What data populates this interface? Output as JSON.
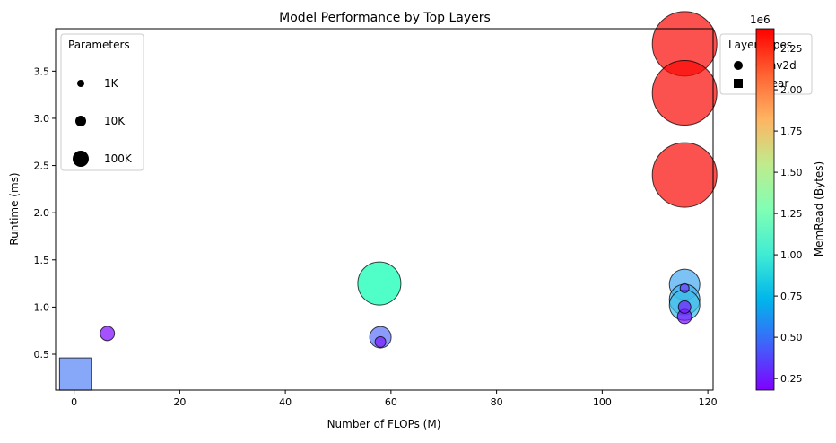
{
  "chart_data": {
    "type": "scatter",
    "title": "Model Performance by Top Layers",
    "xlabel": "Number of FLOPs (M)",
    "ylabel": "Runtime (ms)",
    "xlim": [
      -3.5,
      121
    ],
    "ylim": [
      0.12,
      3.95
    ],
    "xticks": [
      0,
      20,
      40,
      60,
      80,
      100,
      120
    ],
    "yticks": [
      0.5,
      1.0,
      1.5,
      2.0,
      2.5,
      3.0,
      3.5
    ],
    "ytick_labels": [
      "0.5",
      "1.0",
      "1.5",
      "2.0",
      "2.5",
      "3.0",
      "3.5"
    ],
    "points": [
      {
        "x": 0.3,
        "y": 0.29,
        "size": 18,
        "mem": 550000,
        "shape": "square"
      },
      {
        "x": 6.3,
        "y": 0.72,
        "size": 8,
        "mem": 200000,
        "shape": "circle"
      },
      {
        "x": 57.8,
        "y": 1.25,
        "size": 24,
        "mem": 1300000,
        "shape": "circle"
      },
      {
        "x": 58.0,
        "y": 0.68,
        "size": 12,
        "mem": 500000,
        "shape": "circle"
      },
      {
        "x": 58.0,
        "y": 0.63,
        "size": 6,
        "mem": 250000,
        "shape": "circle"
      },
      {
        "x": 115.6,
        "y": 3.79,
        "size": 36,
        "mem": 2350000,
        "shape": "circle"
      },
      {
        "x": 115.6,
        "y": 3.27,
        "size": 36,
        "mem": 2350000,
        "shape": "circle"
      },
      {
        "x": 115.6,
        "y": 2.4,
        "size": 36,
        "mem": 2350000,
        "shape": "circle"
      },
      {
        "x": 115.6,
        "y": 1.24,
        "size": 17,
        "mem": 680000,
        "shape": "circle"
      },
      {
        "x": 115.6,
        "y": 1.08,
        "size": 17,
        "mem": 720000,
        "shape": "circle"
      },
      {
        "x": 115.6,
        "y": 1.02,
        "size": 17,
        "mem": 760000,
        "shape": "circle"
      },
      {
        "x": 115.6,
        "y": 1.2,
        "size": 5,
        "mem": 350000,
        "shape": "circle"
      },
      {
        "x": 115.6,
        "y": 1.0,
        "size": 7,
        "mem": 250000,
        "shape": "circle"
      },
      {
        "x": 115.6,
        "y": 0.9,
        "size": 8,
        "mem": 220000,
        "shape": "circle"
      }
    ],
    "colorbar": {
      "label": "MemRead (Bytes)",
      "multiplier": "1e6",
      "ticks": [
        0.25,
        0.5,
        0.75,
        1.0,
        1.25,
        1.5,
        1.75,
        2.0,
        2.25
      ],
      "tick_labels": [
        "0.25",
        "0.50",
        "0.75",
        "1.00",
        "1.25",
        "1.50",
        "1.75",
        "2.00",
        "2.25"
      ],
      "range": [
        0.18,
        2.37
      ],
      "colormap": "rainbow"
    },
    "size_legend": {
      "title": "Parameters",
      "placement": "top-left",
      "entries": [
        {
          "label": "1K",
          "size": 4
        },
        {
          "label": "10K",
          "size": 6
        },
        {
          "label": "100K",
          "size": 10
        }
      ]
    },
    "layer_legend": {
      "title": "Layer Types",
      "placement": "top-right",
      "entries": [
        {
          "label": "Conv2d",
          "shape": "circle"
        },
        {
          "label": "Linear",
          "shape": "square"
        }
      ]
    }
  }
}
